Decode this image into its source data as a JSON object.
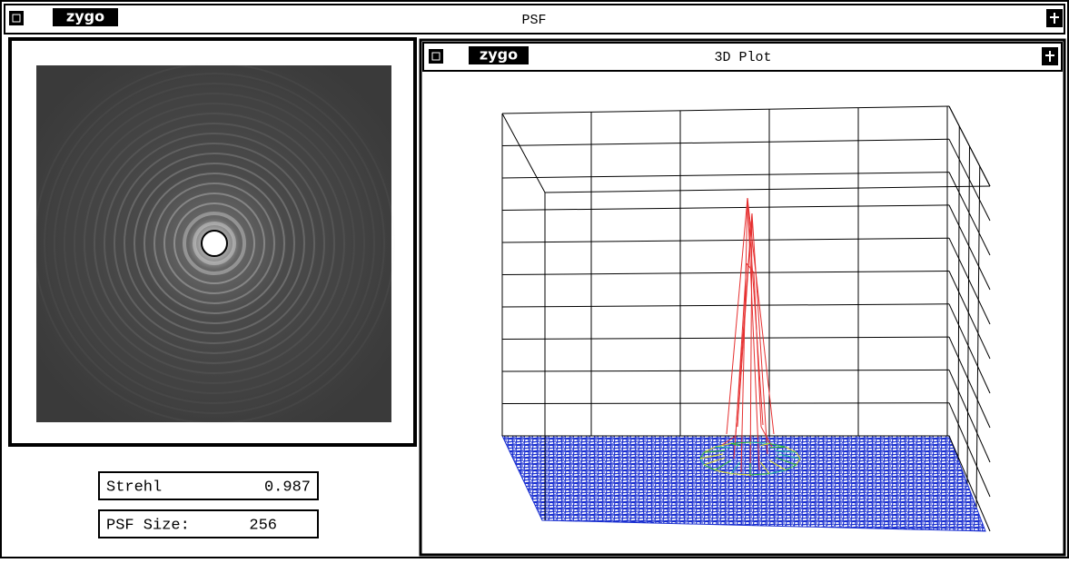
{
  "window": {
    "logo": "zygo",
    "title": "PSF"
  },
  "plot_window": {
    "logo": "zygo",
    "title": "3D Plot"
  },
  "fields": [
    {
      "label": "Strehl",
      "value": "0.987"
    },
    {
      "label": "PSF Size:",
      "value": "256"
    }
  ]
}
